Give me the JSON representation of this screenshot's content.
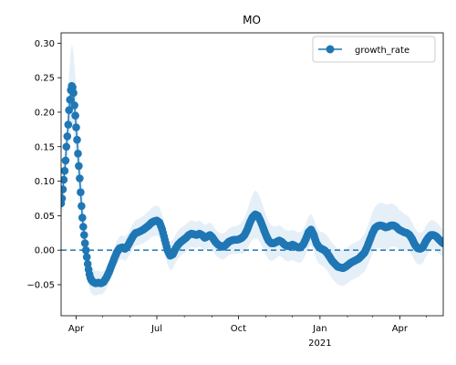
{
  "chart_data": {
    "type": "line",
    "title": "MO",
    "xlabel": "",
    "ylabel": "",
    "x_start": "2020-03-15",
    "x_end": "2021-05-20",
    "ylim": [
      -0.095,
      0.315
    ],
    "x_ticks": [
      {
        "date": "2020-04-01",
        "label": "Apr",
        "sublabel": ""
      },
      {
        "date": "2020-07-01",
        "label": "Jul",
        "sublabel": ""
      },
      {
        "date": "2020-10-01",
        "label": "Oct",
        "sublabel": ""
      },
      {
        "date": "2021-01-01",
        "label": "Jan",
        "sublabel": "2021"
      },
      {
        "date": "2021-04-01",
        "label": "Apr",
        "sublabel": ""
      }
    ],
    "x_minor_ticks": [
      "2020-05-01",
      "2020-06-01",
      "2020-08-01",
      "2020-09-01",
      "2020-11-01",
      "2020-12-01",
      "2021-02-01",
      "2021-03-01",
      "2021-05-01"
    ],
    "y_ticks": [
      -0.05,
      0.0,
      0.05,
      0.1,
      0.15,
      0.2,
      0.25,
      0.3
    ],
    "y_tick_labels": [
      "−0.05",
      "0.00",
      "0.05",
      "0.10",
      "0.15",
      "0.20",
      "0.25",
      "0.30"
    ],
    "reference_line": {
      "y": 0.0,
      "style": "dashed"
    },
    "legend": {
      "location": "top-right",
      "entries": [
        "growth_rate"
      ]
    },
    "colors": {
      "line": "#1f77b4",
      "band": "#dce9f5",
      "axis": "#000000"
    },
    "series": [
      {
        "name": "growth_rate",
        "points": [
          [
            "2020-03-15",
            0.068
          ],
          [
            "2020-03-16",
            0.075
          ],
          [
            "2020-03-17",
            0.088
          ],
          [
            "2020-03-18",
            0.102
          ],
          [
            "2020-03-19",
            0.115
          ],
          [
            "2020-03-20",
            0.13
          ],
          [
            "2020-03-21",
            0.15
          ],
          [
            "2020-03-22",
            0.165
          ],
          [
            "2020-03-23",
            0.182
          ],
          [
            "2020-03-24",
            0.203
          ],
          [
            "2020-03-25",
            0.218
          ],
          [
            "2020-03-26",
            0.232
          ],
          [
            "2020-03-27",
            0.238
          ],
          [
            "2020-03-28",
            0.236
          ],
          [
            "2020-03-29",
            0.228
          ],
          [
            "2020-03-30",
            0.21
          ],
          [
            "2020-03-31",
            0.195
          ],
          [
            "2020-04-01",
            0.178
          ],
          [
            "2020-04-02",
            0.16
          ],
          [
            "2020-04-03",
            0.14
          ],
          [
            "2020-04-04",
            0.122
          ],
          [
            "2020-04-05",
            0.104
          ],
          [
            "2020-04-06",
            0.084
          ],
          [
            "2020-04-07",
            0.064
          ],
          [
            "2020-04-08",
            0.047
          ],
          [
            "2020-04-09",
            0.034
          ],
          [
            "2020-04-10",
            0.022
          ],
          [
            "2020-04-11",
            0.01
          ],
          [
            "2020-04-12",
            0.0
          ],
          [
            "2020-04-13",
            -0.01
          ],
          [
            "2020-04-14",
            -0.02
          ],
          [
            "2020-04-15",
            -0.028
          ],
          [
            "2020-04-16",
            -0.035
          ],
          [
            "2020-04-17",
            -0.04
          ],
          [
            "2020-04-18",
            -0.043
          ],
          [
            "2020-04-20",
            -0.046
          ],
          [
            "2020-04-23",
            -0.048
          ],
          [
            "2020-04-26",
            -0.047
          ],
          [
            "2020-04-29",
            -0.048
          ],
          [
            "2020-05-02",
            -0.046
          ],
          [
            "2020-05-05",
            -0.04
          ],
          [
            "2020-05-08",
            -0.032
          ],
          [
            "2020-05-11",
            -0.022
          ],
          [
            "2020-05-14",
            -0.012
          ],
          [
            "2020-05-17",
            -0.003
          ],
          [
            "2020-05-20",
            0.003
          ],
          [
            "2020-05-23",
            0.004
          ],
          [
            "2020-05-26",
            0.002
          ],
          [
            "2020-05-29",
            0.006
          ],
          [
            "2020-06-01",
            0.013
          ],
          [
            "2020-06-04",
            0.02
          ],
          [
            "2020-06-07",
            0.025
          ],
          [
            "2020-06-10",
            0.026
          ],
          [
            "2020-06-13",
            0.028
          ],
          [
            "2020-06-16",
            0.03
          ],
          [
            "2020-06-19",
            0.033
          ],
          [
            "2020-06-22",
            0.036
          ],
          [
            "2020-06-25",
            0.04
          ],
          [
            "2020-06-28",
            0.042
          ],
          [
            "2020-07-01",
            0.043
          ],
          [
            "2020-07-04",
            0.04
          ],
          [
            "2020-07-07",
            0.03
          ],
          [
            "2020-07-10",
            0.015
          ],
          [
            "2020-07-13",
            0.0
          ],
          [
            "2020-07-16",
            -0.008
          ],
          [
            "2020-07-19",
            -0.006
          ],
          [
            "2020-07-22",
            0.002
          ],
          [
            "2020-07-25",
            0.008
          ],
          [
            "2020-07-28",
            0.012
          ],
          [
            "2020-07-31",
            0.015
          ],
          [
            "2020-08-03",
            0.018
          ],
          [
            "2020-08-06",
            0.022
          ],
          [
            "2020-08-09",
            0.024
          ],
          [
            "2020-08-12",
            0.023
          ],
          [
            "2020-08-15",
            0.022
          ],
          [
            "2020-08-18",
            0.024
          ],
          [
            "2020-08-21",
            0.022
          ],
          [
            "2020-08-24",
            0.018
          ],
          [
            "2020-08-27",
            0.02
          ],
          [
            "2020-08-30",
            0.022
          ],
          [
            "2020-09-02",
            0.018
          ],
          [
            "2020-09-05",
            0.012
          ],
          [
            "2020-09-08",
            0.008
          ],
          [
            "2020-09-11",
            0.006
          ],
          [
            "2020-09-14",
            0.005
          ],
          [
            "2020-09-17",
            0.008
          ],
          [
            "2020-09-20",
            0.012
          ],
          [
            "2020-09-23",
            0.014
          ],
          [
            "2020-09-26",
            0.015
          ],
          [
            "2020-09-29",
            0.015
          ],
          [
            "2020-10-02",
            0.016
          ],
          [
            "2020-10-05",
            0.018
          ],
          [
            "2020-10-08",
            0.022
          ],
          [
            "2020-10-11",
            0.03
          ],
          [
            "2020-10-14",
            0.04
          ],
          [
            "2020-10-17",
            0.048
          ],
          [
            "2020-10-20",
            0.052
          ],
          [
            "2020-10-23",
            0.05
          ],
          [
            "2020-10-26",
            0.042
          ],
          [
            "2020-10-29",
            0.032
          ],
          [
            "2020-11-01",
            0.022
          ],
          [
            "2020-11-04",
            0.014
          ],
          [
            "2020-11-07",
            0.01
          ],
          [
            "2020-11-10",
            0.01
          ],
          [
            "2020-11-13",
            0.012
          ],
          [
            "2020-11-16",
            0.014
          ],
          [
            "2020-11-19",
            0.012
          ],
          [
            "2020-11-22",
            0.008
          ],
          [
            "2020-11-25",
            0.006
          ],
          [
            "2020-11-28",
            0.006
          ],
          [
            "2020-12-01",
            0.008
          ],
          [
            "2020-12-04",
            0.006
          ],
          [
            "2020-12-07",
            0.004
          ],
          [
            "2020-12-10",
            0.004
          ],
          [
            "2020-12-13",
            0.008
          ],
          [
            "2020-12-16",
            0.016
          ],
          [
            "2020-12-19",
            0.026
          ],
          [
            "2020-12-22",
            0.03
          ],
          [
            "2020-12-25",
            0.022
          ],
          [
            "2020-12-28",
            0.01
          ],
          [
            "2020-12-31",
            0.004
          ],
          [
            "2021-01-03",
            0.002
          ],
          [
            "2021-01-06",
            0.0
          ],
          [
            "2021-01-09",
            -0.004
          ],
          [
            "2021-01-12",
            -0.01
          ],
          [
            "2021-01-15",
            -0.016
          ],
          [
            "2021-01-18",
            -0.02
          ],
          [
            "2021-01-21",
            -0.024
          ],
          [
            "2021-01-24",
            -0.025
          ],
          [
            "2021-01-27",
            -0.026
          ],
          [
            "2021-01-30",
            -0.024
          ],
          [
            "2021-02-02",
            -0.021
          ],
          [
            "2021-02-05",
            -0.018
          ],
          [
            "2021-02-08",
            -0.016
          ],
          [
            "2021-02-11",
            -0.014
          ],
          [
            "2021-02-14",
            -0.012
          ],
          [
            "2021-02-17",
            -0.008
          ],
          [
            "2021-02-20",
            -0.004
          ],
          [
            "2021-02-23",
            0.004
          ],
          [
            "2021-02-26",
            0.014
          ],
          [
            "2021-03-01",
            0.024
          ],
          [
            "2021-03-04",
            0.032
          ],
          [
            "2021-03-07",
            0.035
          ],
          [
            "2021-03-10",
            0.036
          ],
          [
            "2021-03-13",
            0.035
          ],
          [
            "2021-03-16",
            0.033
          ],
          [
            "2021-03-19",
            0.034
          ],
          [
            "2021-03-22",
            0.036
          ],
          [
            "2021-03-25",
            0.036
          ],
          [
            "2021-03-28",
            0.034
          ],
          [
            "2021-03-31",
            0.03
          ],
          [
            "2021-04-03",
            0.028
          ],
          [
            "2021-04-06",
            0.026
          ],
          [
            "2021-04-09",
            0.025
          ],
          [
            "2021-04-12",
            0.022
          ],
          [
            "2021-04-15",
            0.016
          ],
          [
            "2021-04-18",
            0.008
          ],
          [
            "2021-04-21",
            0.003
          ],
          [
            "2021-04-24",
            0.002
          ],
          [
            "2021-04-27",
            0.004
          ],
          [
            "2021-04-30",
            0.012
          ],
          [
            "2021-05-03",
            0.018
          ],
          [
            "2021-05-06",
            0.022
          ],
          [
            "2021-05-09",
            0.022
          ],
          [
            "2021-05-12",
            0.02
          ],
          [
            "2021-05-15",
            0.016
          ],
          [
            "2021-05-18",
            0.012
          ],
          [
            "2021-05-20",
            0.01
          ]
        ],
        "band_halfwidth": [
          [
            "2020-03-15",
            0.02
          ],
          [
            "2020-03-27",
            0.06
          ],
          [
            "2020-04-05",
            0.05
          ],
          [
            "2020-04-15",
            0.02
          ],
          [
            "2020-05-01",
            0.016
          ],
          [
            "2020-06-01",
            0.018
          ],
          [
            "2020-07-01",
            0.022
          ],
          [
            "2020-08-01",
            0.02
          ],
          [
            "2020-09-01",
            0.018
          ],
          [
            "2020-10-01",
            0.02
          ],
          [
            "2020-10-20",
            0.035
          ],
          [
            "2020-11-15",
            0.022
          ],
          [
            "2020-12-15",
            0.022
          ],
          [
            "2021-01-15",
            0.026
          ],
          [
            "2021-02-15",
            0.026
          ],
          [
            "2021-03-15",
            0.034
          ],
          [
            "2021-04-15",
            0.024
          ],
          [
            "2021-05-20",
            0.02
          ]
        ]
      }
    ]
  }
}
